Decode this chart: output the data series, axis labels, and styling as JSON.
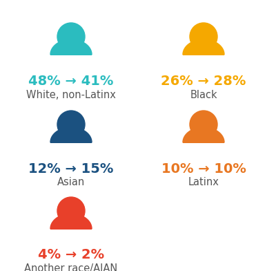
{
  "groups": [
    {
      "label": "White, non-Latinx",
      "pct_from": "48%",
      "pct_to": "41%",
      "color": "#2bbcbf",
      "col": 0,
      "row": 0
    },
    {
      "label": "Black",
      "pct_from": "26%",
      "pct_to": "28%",
      "color": "#f5a800",
      "col": 1,
      "row": 0
    },
    {
      "label": "Asian",
      "pct_from": "12%",
      "pct_to": "15%",
      "color": "#1b5180",
      "col": 0,
      "row": 1
    },
    {
      "label": "Latinx",
      "pct_from": "10%",
      "pct_to": "10%",
      "color": "#e87722",
      "col": 1,
      "row": 1
    },
    {
      "label": "Another race/AIAN",
      "pct_from": "4%",
      "pct_to": "2%",
      "color": "#e8402a",
      "col": 0,
      "row": 2
    }
  ],
  "arrow": "→",
  "bg_color": "#ffffff",
  "label_color": "#555555",
  "pct_fontsize": 14,
  "label_fontsize": 10.5
}
